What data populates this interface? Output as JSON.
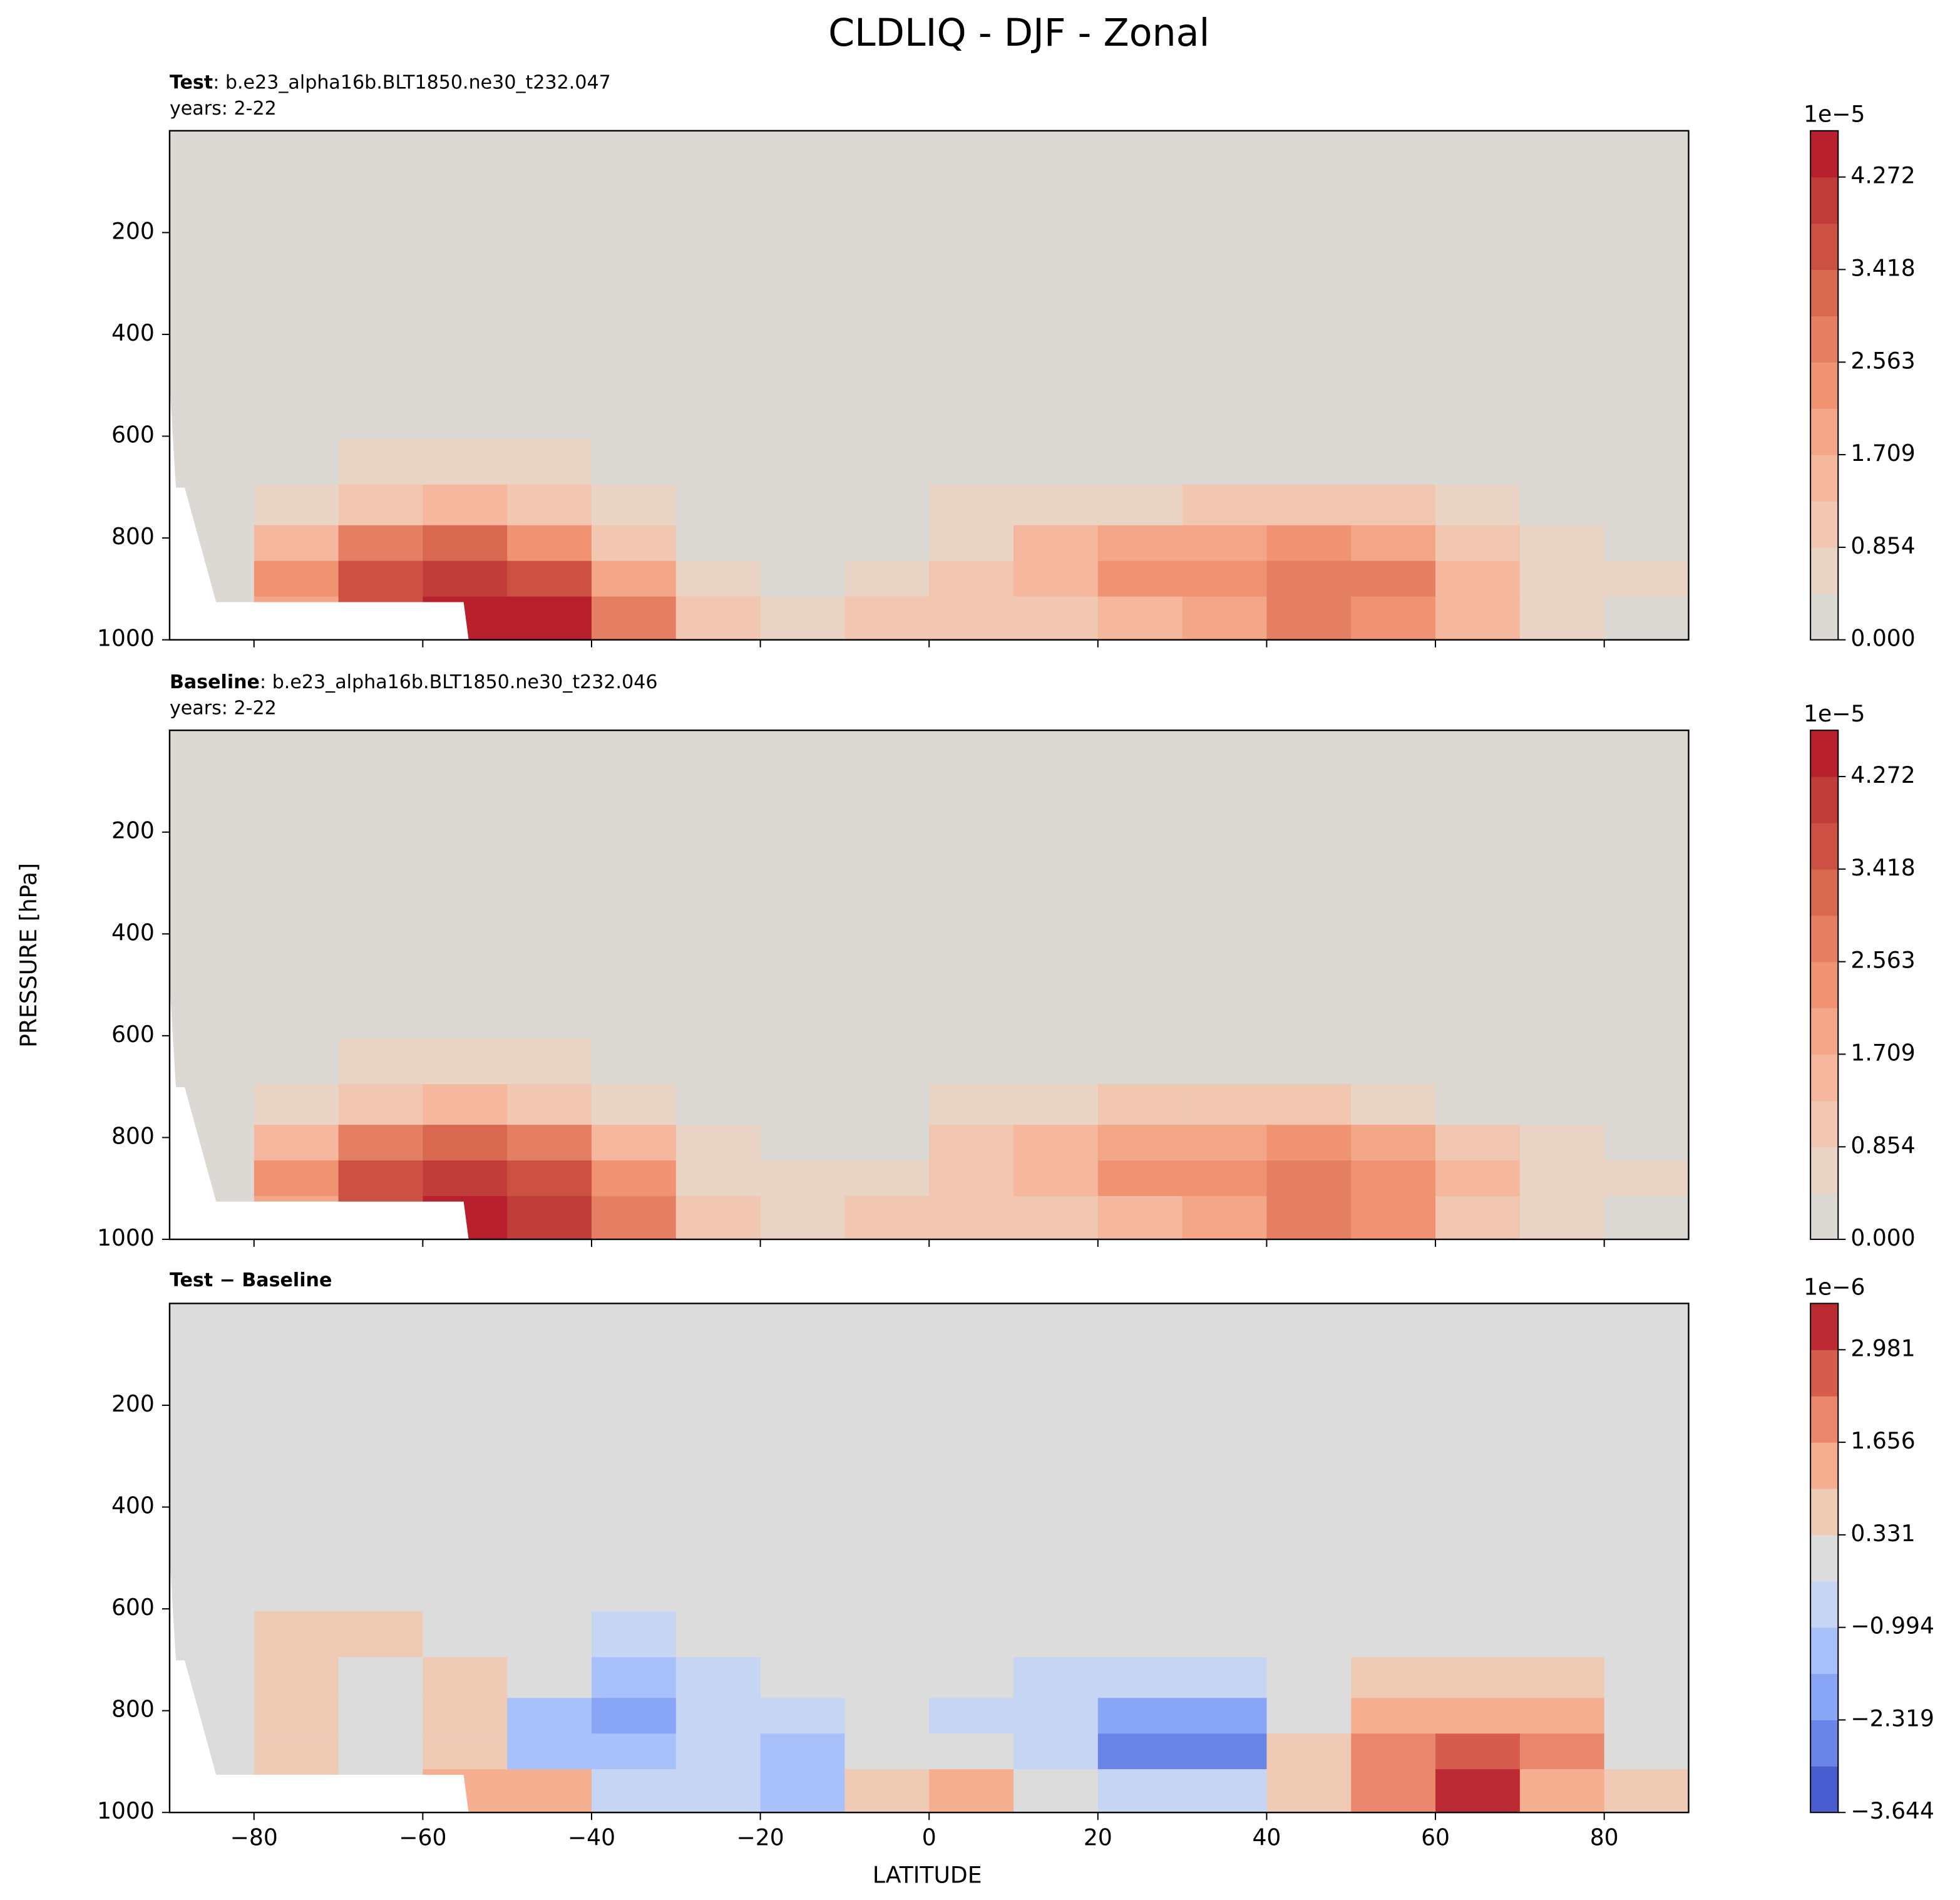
{
  "figure": {
    "title": "CLDLIQ - DJF - Zonal",
    "xlabel": "LATITUDE",
    "ylabel": "PRESSURE [hPa]"
  },
  "chart_data": [
    {
      "type": "contour",
      "label": "Test",
      "subtitle": ": b.e23_alpha16b.BLT1850.ne30_t232.047",
      "years": "years: 2-22",
      "x": [
        -85,
        -75,
        -65,
        -55,
        -45,
        -35,
        -25,
        -15,
        -5,
        5,
        15,
        25,
        35,
        45,
        55,
        65,
        75,
        85
      ],
      "y": [
        650,
        740,
        810,
        880,
        950
      ],
      "z": [
        [
          0,
          0.3,
          0.5,
          0.6,
          0.5,
          0.2,
          0,
          0,
          0,
          0,
          0,
          0,
          0.2,
          0.3,
          0.2,
          0,
          0,
          0
        ],
        [
          0,
          0.8,
          1.2,
          1.3,
          1.1,
          0.6,
          0.2,
          0,
          0.1,
          0.5,
          0.6,
          0.8,
          0.9,
          1.0,
          0.9,
          0.5,
          0.3,
          0
        ],
        [
          0.4,
          1.6,
          2.6,
          3.0,
          2.4,
          1.2,
          0.4,
          0.2,
          0.3,
          0.8,
          1.3,
          1.9,
          1.9,
          2.2,
          2.0,
          1.2,
          0.6,
          0.3
        ],
        [
          0.4,
          2.3,
          3.6,
          4.0,
          3.6,
          2.0,
          0.7,
          0.4,
          0.7,
          1.2,
          1.5,
          2.3,
          2.2,
          2.8,
          2.6,
          1.6,
          0.8,
          0.5
        ],
        [
          0.3,
          2.0,
          3.6,
          4.6,
          4.3,
          2.6,
          0.9,
          0.6,
          1.2,
          1.2,
          0.9,
          1.5,
          1.8,
          2.6,
          2.4,
          1.4,
          0.7,
          0.4
        ]
      ],
      "xlim": [
        -90,
        90
      ],
      "ylim": [
        1000,
        0
      ],
      "xticks": [
        -80,
        -60,
        -40,
        -20,
        0,
        20,
        40,
        60,
        80
      ],
      "yticks": [
        200,
        400,
        600,
        800,
        1000
      ],
      "colorbar": {
        "offset_label": "1e−5",
        "ylim": [
          0,
          4.699
        ],
        "levels": [
          0,
          0.427,
          0.854,
          1.281,
          1.709,
          2.136,
          2.563,
          2.99,
          3.418,
          3.845,
          4.272,
          4.699
        ],
        "colors": [
          "#dcd8d4",
          "#ead4c6",
          "#f1c7b2",
          "#f5b79d",
          "#f4a688",
          "#ef9373",
          "#e57f63",
          "#d96851",
          "#cc5043",
          "#c13d3a",
          "#b8202e"
        ],
        "ticks": [
          {
            "value": 0,
            "label": "0.000"
          },
          0.854,
          1.709,
          2.563,
          3.418,
          4.272
        ]
      }
    },
    {
      "type": "contour",
      "label": "Baseline",
      "subtitle": ": b.e23_alpha16b.BLT1850.ne30_t232.046",
      "years": "years: 2-22",
      "x": [
        -85,
        -75,
        -65,
        -55,
        -45,
        -35,
        -25,
        -15,
        -5,
        5,
        15,
        25,
        35,
        45,
        55,
        65,
        75,
        85
      ],
      "y": [
        650,
        740,
        810,
        880,
        950
      ],
      "z": [
        [
          0,
          0.3,
          0.5,
          0.6,
          0.5,
          0.2,
          0,
          0,
          0,
          0,
          0,
          0,
          0.2,
          0.3,
          0.2,
          0,
          0,
          0
        ],
        [
          0,
          0.7,
          1.2,
          1.3,
          1.2,
          0.7,
          0.2,
          0,
          0.1,
          0.5,
          0.7,
          0.9,
          0.9,
          1.0,
          0.8,
          0.4,
          0.3,
          0
        ],
        [
          0.4,
          1.5,
          2.6,
          3.0,
          2.6,
          1.4,
          0.5,
          0.3,
          0.4,
          0.9,
          1.4,
          2.1,
          2.1,
          2.2,
          1.8,
          1.0,
          0.5,
          0.3
        ],
        [
          0.4,
          2.2,
          3.6,
          4.0,
          3.7,
          2.2,
          0.8,
          0.5,
          0.7,
          1.1,
          1.6,
          2.5,
          2.5,
          2.8,
          2.4,
          1.4,
          0.7,
          0.5
        ],
        [
          0.3,
          1.9,
          3.5,
          4.5,
          4.2,
          2.7,
          1.0,
          0.8,
          1.1,
          1.1,
          1.0,
          1.6,
          1.9,
          2.6,
          2.2,
          1.1,
          0.6,
          0.3
        ]
      ],
      "xlim": [
        -90,
        90
      ],
      "ylim": [
        1000,
        0
      ],
      "xticks": [
        -80,
        -60,
        -40,
        -20,
        0,
        20,
        40,
        60,
        80
      ],
      "yticks": [
        200,
        400,
        600,
        800,
        1000
      ],
      "colorbar": {
        "offset_label": "1e−5",
        "ylim": [
          0,
          4.699
        ],
        "levels": [
          0,
          0.427,
          0.854,
          1.281,
          1.709,
          2.136,
          2.563,
          2.99,
          3.418,
          3.845,
          4.272,
          4.699
        ],
        "colors": [
          "#dcd8d4",
          "#ead4c6",
          "#f1c7b2",
          "#f5b79d",
          "#f4a688",
          "#ef9373",
          "#e57f63",
          "#d96851",
          "#cc5043",
          "#c13d3a",
          "#b8202e"
        ],
        "ticks": [
          {
            "value": 0,
            "label": "0.000"
          },
          0.854,
          1.709,
          2.563,
          3.418,
          4.272
        ]
      }
    },
    {
      "type": "contour",
      "label": "Test − Baseline",
      "x": [
        -85,
        -75,
        -65,
        -55,
        -45,
        -35,
        -25,
        -15,
        -5,
        5,
        15,
        25,
        35,
        45,
        55,
        65,
        75,
        85
      ],
      "y": [
        650,
        740,
        810,
        880,
        950
      ],
      "z": [
        [
          0,
          0.5,
          0.4,
          0.3,
          0,
          -0.4,
          0,
          0,
          0,
          0,
          0,
          0,
          0,
          0,
          0.2,
          0.3,
          0.3,
          0
        ],
        [
          0,
          0.6,
          0.3,
          0.4,
          -0.3,
          -1.0,
          -0.6,
          -0.3,
          0,
          -0.2,
          -0.5,
          -0.8,
          -0.7,
          0.2,
          0.8,
          0.7,
          0.6,
          0.1
        ],
        [
          0,
          0.8,
          0.2,
          0.6,
          -1.2,
          -1.8,
          -0.9,
          -0.5,
          -0.2,
          -0.4,
          -0.8,
          -2.0,
          -1.8,
          0.3,
          1.6,
          1.4,
          1.2,
          0.2
        ],
        [
          0,
          0.9,
          0.3,
          0.5,
          -1.4,
          -1.6,
          -0.9,
          -1.2,
          -0.3,
          0.3,
          -0.6,
          -2.4,
          -2.8,
          0.4,
          2.1,
          2.4,
          2.1,
          0.3
        ],
        [
          0,
          0.8,
          0.3,
          1.2,
          1.0,
          -0.8,
          -0.7,
          -1.6,
          0.6,
          1.3,
          -0.2,
          -0.9,
          -0.9,
          0.5,
          2.3,
          3.3,
          1.6,
          0.6
        ]
      ],
      "xlim": [
        -90,
        90
      ],
      "ylim": [
        1000,
        0
      ],
      "xticks": [
        {
          "value": -80,
          "label": "−80"
        },
        {
          "value": -60,
          "label": "−60"
        },
        {
          "value": -40,
          "label": "−40"
        },
        {
          "value": -20,
          "label": "−20"
        },
        0,
        20,
        40,
        60,
        80
      ],
      "yticks": [
        200,
        400,
        600,
        800,
        1000
      ],
      "colorbar": {
        "offset_label": "1e−6",
        "ylim": [
          -3.644,
          3.644
        ],
        "levels": [
          -3.644,
          -2.981,
          -2.319,
          -1.656,
          -0.994,
          -0.331,
          0.331,
          0.994,
          1.656,
          2.319,
          2.981,
          3.644
        ],
        "colors": [
          "#4a5dd0",
          "#6a84e7",
          "#89a5f6",
          "#a8c1fb",
          "#c5d5f3",
          "#dcdcdc",
          "#efcbb6",
          "#f5ae90",
          "#e9866b",
          "#d65c4d",
          "#bb2a33"
        ],
        "ticks": [
          {
            "value": -3.644,
            "label": "−3.644"
          },
          {
            "value": -2.319,
            "label": "−2.319"
          },
          {
            "value": -0.994,
            "label": "−0.994"
          },
          0.331,
          1.656,
          2.981
        ]
      }
    }
  ]
}
